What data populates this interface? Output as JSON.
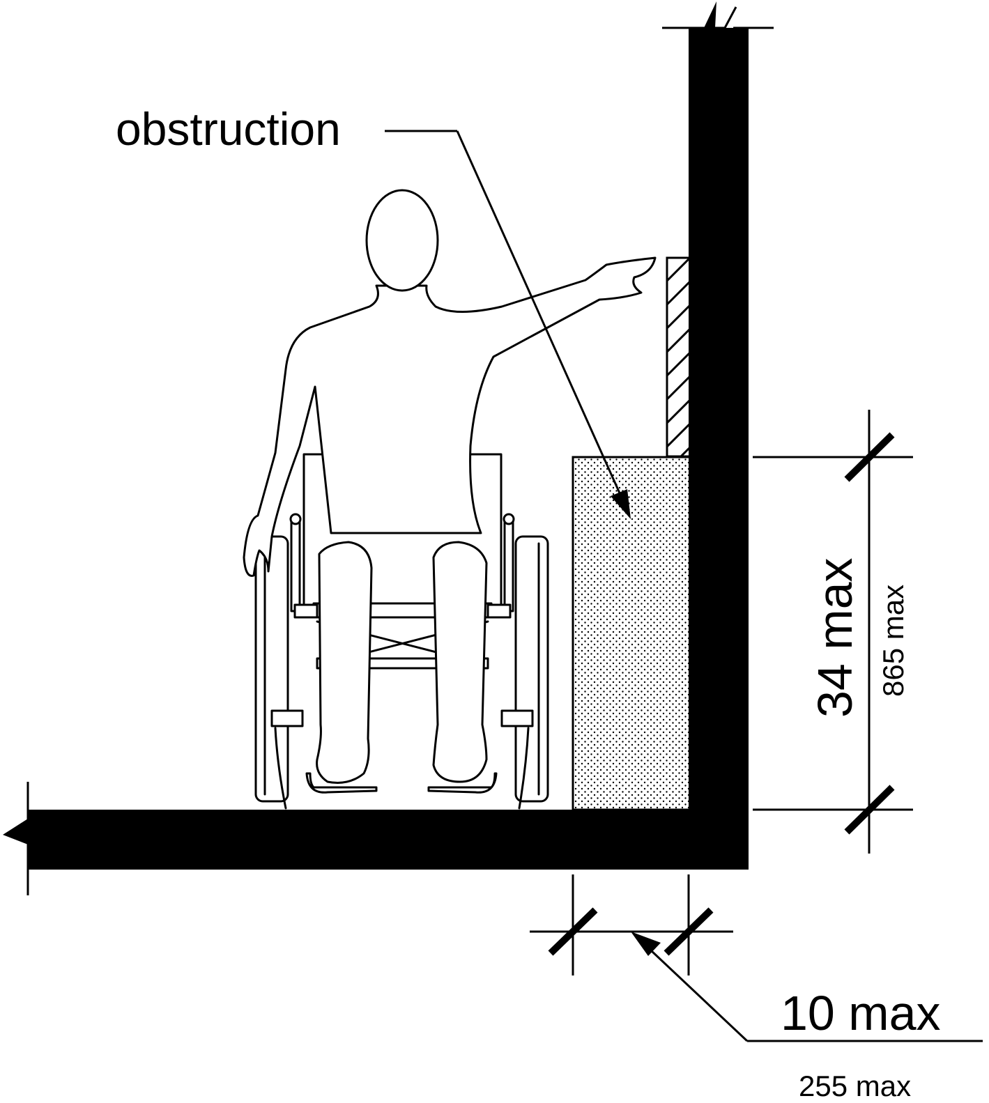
{
  "labels": {
    "obstruction": "obstruction",
    "height_imperial": "34 max",
    "height_metric": "865 max",
    "depth_imperial": "10 max",
    "depth_metric": "255 max"
  },
  "colors": {
    "ink": "#000000",
    "paper": "#ffffff"
  }
}
